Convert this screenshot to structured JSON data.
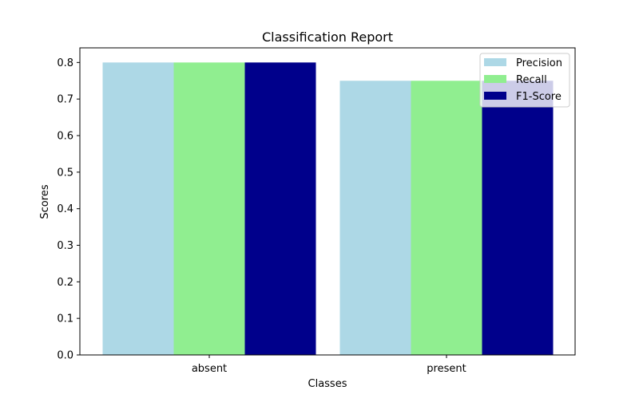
{
  "chart_data": {
    "type": "bar",
    "title": "Classification Report",
    "xlabel": "Classes",
    "ylabel": "Scores",
    "categories": [
      "absent",
      "present"
    ],
    "ylim": [
      0,
      0.84
    ],
    "yticks": [
      0.0,
      0.1,
      0.2,
      0.3,
      0.4,
      0.5,
      0.6,
      0.7,
      0.8
    ],
    "ytick_labels": [
      "0.0",
      "0.1",
      "0.2",
      "0.3",
      "0.4",
      "0.5",
      "0.6",
      "0.7",
      "0.8"
    ],
    "grid": false,
    "legend_position": "top-right",
    "series": [
      {
        "name": "Precision",
        "color": "#add8e6",
        "values": [
          0.8,
          0.75
        ]
      },
      {
        "name": "Recall",
        "color": "#90ee90",
        "values": [
          0.8,
          0.75
        ]
      },
      {
        "name": "F1-Score",
        "color": "#00008b",
        "values": [
          0.8,
          0.75
        ]
      }
    ]
  }
}
